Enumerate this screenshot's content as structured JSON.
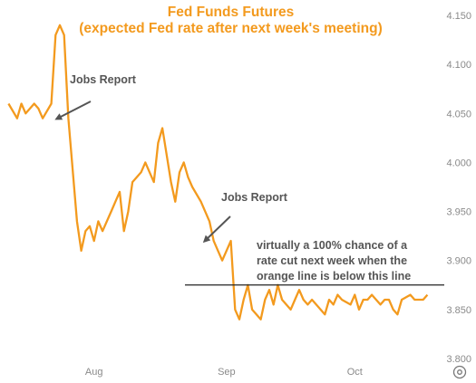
{
  "chart_data": {
    "type": "line",
    "title": "Fed Funds Futures",
    "subtitle": "(expected Fed rate after next week's meeting)",
    "x_tick_labels": [
      "Aug",
      "Sep",
      "Oct"
    ],
    "y_tick_labels": [
      "4.150",
      "4.100",
      "4.050",
      "4.000",
      "3.950",
      "3.900",
      "3.850",
      "3.800"
    ],
    "ylim": [
      3.8,
      4.15
    ],
    "threshold": 3.875,
    "grid": false,
    "colors": {
      "series": "#f39a1e",
      "threshold_line": "#222222",
      "arrow": "#555555"
    },
    "annotations": {
      "jobs_report_1": "Jobs Report",
      "jobs_report_2": "Jobs Report",
      "threshold_note": [
        "virtually a 100% chance of a",
        "rate cut next week when the",
        "orange line is below this line"
      ]
    },
    "series": [
      {
        "x": [
          "Jul 12",
          "Jul 14",
          "Jul 15",
          "Jul 16",
          "Jul 18",
          "Jul 19",
          "Jul 20",
          "Jul 22",
          "Jul 23",
          "Jul 24",
          "Jul 25",
          "Jul 26",
          "Jul 28",
          "Jul 29",
          "Jul 30",
          "Jul 31",
          "Aug 01",
          "Aug 02",
          "Aug 03",
          "Aug 05",
          "Aug 06",
          "Aug 07",
          "Aug 08",
          "Aug 09",
          "Aug 10",
          "Aug 12",
          "Aug 13",
          "Aug 14",
          "Aug 15",
          "Aug 16",
          "Aug 17",
          "Aug 19",
          "Aug 20",
          "Aug 21",
          "Aug 22",
          "Aug 23",
          "Aug 24",
          "Aug 26",
          "Aug 27",
          "Aug 28",
          "Aug 29",
          "Aug 30",
          "Aug 31",
          "Sep 02",
          "Sep 03",
          "Sep 04",
          "Sep 05",
          "Sep 06",
          "Sep 07",
          "Sep 09",
          "Sep 10",
          "Sep 11",
          "Sep 12",
          "Sep 13",
          "Sep 14",
          "Sep 16",
          "Sep 17",
          "Sep 18",
          "Sep 19",
          "Sep 20",
          "Sep 21",
          "Sep 23",
          "Sep 24",
          "Sep 25",
          "Sep 26",
          "Sep 27",
          "Sep 28",
          "Sep 30",
          "Oct 01",
          "Oct 02",
          "Oct 03",
          "Oct 04",
          "Oct 05",
          "Oct 07",
          "Oct 08",
          "Oct 09",
          "Oct 10",
          "Oct 11",
          "Oct 12",
          "Oct 14",
          "Oct 15",
          "Oct 16",
          "Oct 17",
          "Oct 18"
        ],
        "values": [
          4.06,
          4.045,
          4.06,
          4.05,
          4.06,
          4.055,
          4.045,
          4.06,
          4.13,
          4.14,
          4.13,
          4.045,
          3.94,
          3.91,
          3.93,
          3.935,
          3.92,
          3.94,
          3.93,
          3.95,
          3.96,
          3.97,
          3.93,
          3.95,
          3.98,
          3.99,
          4.0,
          3.99,
          3.98,
          4.02,
          4.035,
          3.98,
          3.96,
          3.99,
          4.0,
          3.985,
          3.975,
          3.96,
          3.95,
          3.94,
          3.92,
          3.91,
          3.9,
          3.92,
          3.85,
          3.84,
          3.86,
          3.875,
          3.85,
          3.84,
          3.86,
          3.87,
          3.855,
          3.875,
          3.86,
          3.85,
          3.86,
          3.87,
          3.86,
          3.855,
          3.86,
          3.85,
          3.845,
          3.86,
          3.855,
          3.865,
          3.86,
          3.855,
          3.865,
          3.85,
          3.86,
          3.86,
          3.865,
          3.855,
          3.86,
          3.86,
          3.85,
          3.845,
          3.86,
          3.865,
          3.86,
          3.86,
          3.86,
          3.865
        ]
      }
    ]
  },
  "ui": {
    "settings_icon": "gear-icon"
  }
}
